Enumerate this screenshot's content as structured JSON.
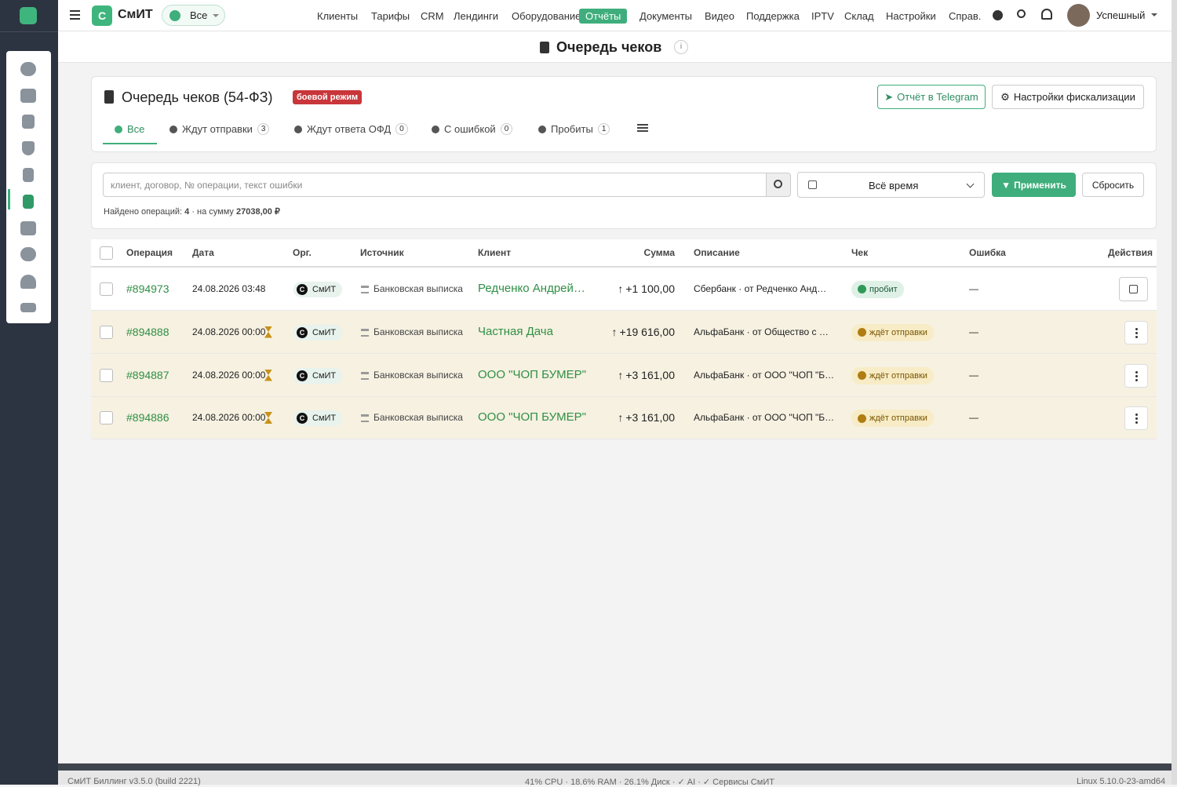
{
  "header": {
    "logo_letter": "С",
    "logo_text": "СмИТ",
    "scope": "Все",
    "nav": [
      "Клиенты",
      "Тарифы",
      "CRM",
      "Лендинги",
      "Оборудование",
      "Отчёты",
      "Документы",
      "Видео",
      "Поддержка",
      "IPTV",
      "Склад",
      "Настройки",
      "Справ."
    ],
    "active_nav": 5,
    "user": "Успешный"
  },
  "page_title": "Очередь чеков",
  "card": {
    "title": "Очередь чеков (54-ФЗ)",
    "badge": "боевой режим",
    "telegram_button": "Отчёт в Telegram",
    "settings_button": "Настройки фискализации",
    "tabs": [
      {
        "label": "Все"
      },
      {
        "label": "Ждут отправки",
        "count": 3
      },
      {
        "label": "Ждут ответа ОФД",
        "count": 0
      },
      {
        "label": "С ошибкой",
        "count": 0
      },
      {
        "label": "Пробиты",
        "count": 1
      }
    ],
    "active_tab": 0
  },
  "filter": {
    "placeholder": "клиент, договор, № операции, текст ошибки",
    "period": "Всё время",
    "apply": "Применить",
    "reset": "Сбросить",
    "found_label": "Найдено операций:",
    "found_count": 4,
    "sum_label": "· на сумму",
    "sum": "27038,00 ₽"
  },
  "table": {
    "columns": [
      "Операция",
      "Дата",
      "Орг.",
      "Источник",
      "Клиент",
      "Сумма",
      "Описание",
      "Чек",
      "Ошибка",
      "Действия"
    ],
    "rows": [
      {
        "operation": "#894973",
        "date": "24.08.2026 03:48",
        "org_letter": "С",
        "org": "СмИТ",
        "source": "Банковская выписка",
        "client": "Редченко Андрей…",
        "sum": "+1 100,00",
        "description": "Сбербанк · от Редченко Анд…",
        "check": "пробит",
        "error": "—",
        "pending": false
      },
      {
        "operation": "#894888",
        "date": "24.08.2026 00:00",
        "org_letter": "С",
        "org": "СмИТ",
        "source": "Банковская выписка",
        "client": "Частная Дача",
        "sum": "+19 616,00",
        "description": "АльфаБанк · от Общество с …",
        "check": "ждёт отправки",
        "error": "—",
        "pending": true
      },
      {
        "operation": "#894887",
        "date": "24.08.2026 00:00",
        "org_letter": "С",
        "org": "СмИТ",
        "source": "Банковская выписка",
        "client": "ООО \"ЧОП БУМЕР\"",
        "sum": "+3 161,00",
        "description": "АльфаБанк · от ООО \"ЧОП \"Б…",
        "check": "ждёт отправки",
        "error": "—",
        "pending": true
      },
      {
        "operation": "#894886",
        "date": "24.08.2026 00:00",
        "org_letter": "С",
        "org": "СмИТ",
        "source": "Банковская выписка",
        "client": "ООО \"ЧОП БУМЕР\"",
        "sum": "+3 161,00",
        "description": "АльфаБанк · от ООО \"ЧОП \"Б…",
        "check": "ждёт отправки",
        "error": "—",
        "pending": true
      }
    ]
  },
  "footer": {
    "left": "СмИТ Биллинг v3.5.0 (build 2221)",
    "center": "41% CPU · 18.6% RAM · 26.1% Диск · ✓ AI · ✓ Сервисы СмИТ",
    "right": "Linux 5.10.0-23-amd64"
  }
}
